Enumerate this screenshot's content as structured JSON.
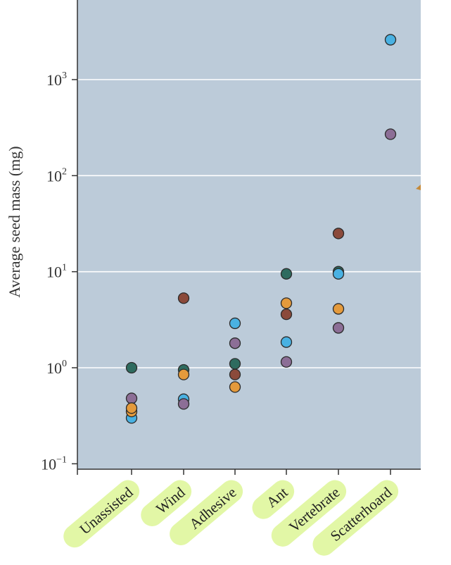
{
  "chart_data": {
    "type": "scatter",
    "title": "",
    "xlabel": "",
    "ylabel": "Average seed mass (mg)",
    "yscale": "log",
    "ylim": [
      0.1,
      5000
    ],
    "yticks": [
      {
        "value": 0.1,
        "base": "10",
        "exp": "−1"
      },
      {
        "value": 1,
        "base": "10",
        "exp": "0"
      },
      {
        "value": 10,
        "base": "10",
        "exp": "1"
      },
      {
        "value": 100,
        "base": "10",
        "exp": "2"
      },
      {
        "value": 1000,
        "base": "10",
        "exp": "3"
      }
    ],
    "categories": [
      "Unassisted",
      "Wind",
      "Adhesive",
      "Ant",
      "Vertebrate",
      "Scatterhoard"
    ],
    "grid": true,
    "colors": {
      "plot_background": "#bccbd9",
      "gridline": "#ffffff",
      "label_highlight": "#e2f7a6",
      "point_outline": "#2b2b2b"
    },
    "series": [
      {
        "color": "#2e6b5f",
        "values": [
          1.0,
          0.95,
          1.1,
          9.5,
          10.0,
          null
        ]
      },
      {
        "color": "#8b4a3b",
        "values": [
          null,
          5.3,
          0.85,
          3.6,
          25.0,
          null
        ]
      },
      {
        "color": "#49b1e2",
        "values": [
          0.3,
          0.47,
          2.9,
          1.85,
          9.5,
          2600
        ]
      },
      {
        "color": "#e49a3c",
        "values": [
          0.35,
          0.85,
          0.63,
          4.7,
          4.1,
          null
        ]
      },
      {
        "color": "#8c6e96",
        "values": [
          0.48,
          0.42,
          1.8,
          1.15,
          2.6,
          270
        ]
      }
    ],
    "extra_points": [
      {
        "category": "Unassisted",
        "value": 0.38,
        "color": "#e49a3c"
      }
    ]
  }
}
